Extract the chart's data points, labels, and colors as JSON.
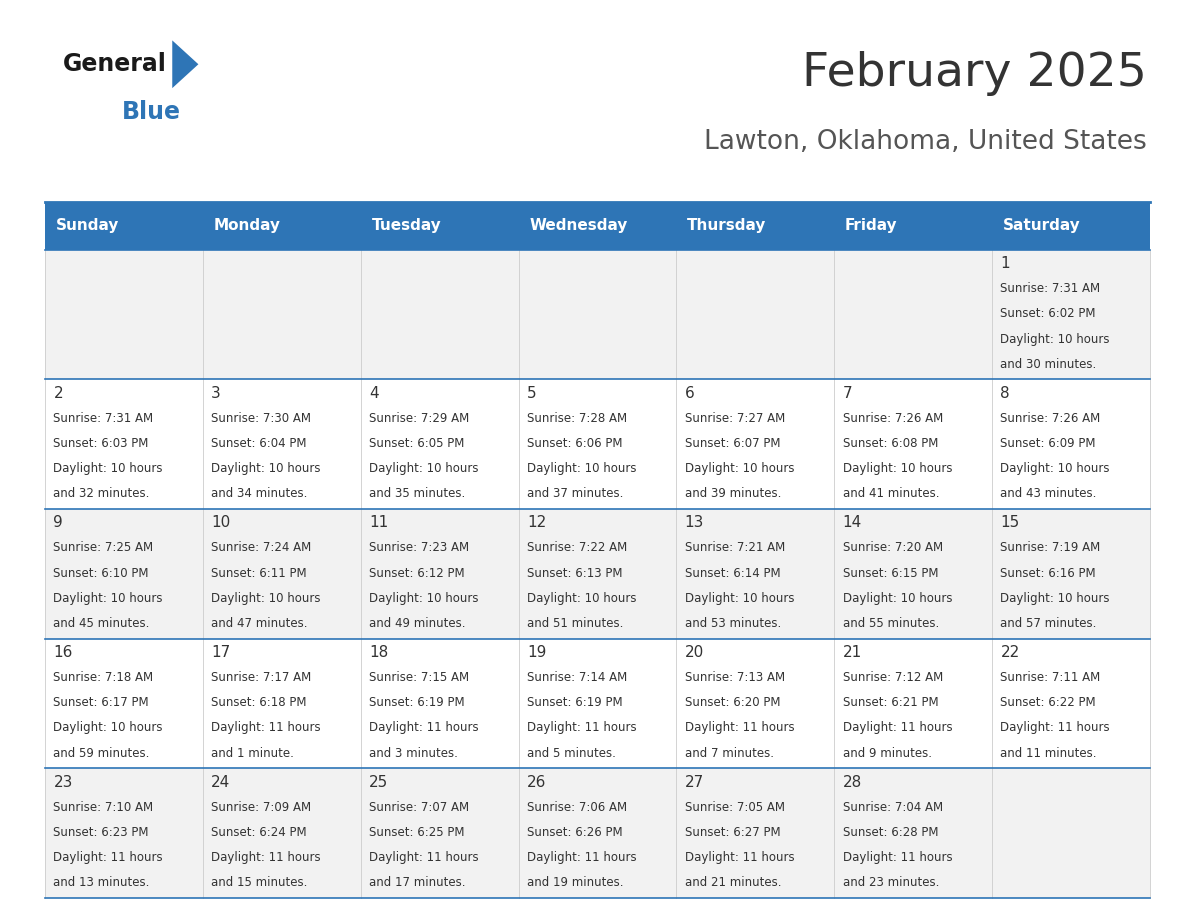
{
  "title": "February 2025",
  "subtitle": "Lawton, Oklahoma, United States",
  "days_of_week": [
    "Sunday",
    "Monday",
    "Tuesday",
    "Wednesday",
    "Thursday",
    "Friday",
    "Saturday"
  ],
  "header_bg": "#2E75B6",
  "header_text": "#FFFFFF",
  "cell_bg_odd": "#F2F2F2",
  "cell_bg_even": "#FFFFFF",
  "text_color": "#333333",
  "line_color": "#2E75B6",
  "title_color": "#333333",
  "subtitle_color": "#555555",
  "day_number_color": "#333333",
  "calendar_data": [
    {
      "day": 1,
      "week": 0,
      "dow": 6,
      "sunrise": "7:31 AM",
      "sunset": "6:02 PM",
      "daylight_h": "10 hours",
      "daylight_m": "and 30 minutes."
    },
    {
      "day": 2,
      "week": 1,
      "dow": 0,
      "sunrise": "7:31 AM",
      "sunset": "6:03 PM",
      "daylight_h": "10 hours",
      "daylight_m": "and 32 minutes."
    },
    {
      "day": 3,
      "week": 1,
      "dow": 1,
      "sunrise": "7:30 AM",
      "sunset": "6:04 PM",
      "daylight_h": "10 hours",
      "daylight_m": "and 34 minutes."
    },
    {
      "day": 4,
      "week": 1,
      "dow": 2,
      "sunrise": "7:29 AM",
      "sunset": "6:05 PM",
      "daylight_h": "10 hours",
      "daylight_m": "and 35 minutes."
    },
    {
      "day": 5,
      "week": 1,
      "dow": 3,
      "sunrise": "7:28 AM",
      "sunset": "6:06 PM",
      "daylight_h": "10 hours",
      "daylight_m": "and 37 minutes."
    },
    {
      "day": 6,
      "week": 1,
      "dow": 4,
      "sunrise": "7:27 AM",
      "sunset": "6:07 PM",
      "daylight_h": "10 hours",
      "daylight_m": "and 39 minutes."
    },
    {
      "day": 7,
      "week": 1,
      "dow": 5,
      "sunrise": "7:26 AM",
      "sunset": "6:08 PM",
      "daylight_h": "10 hours",
      "daylight_m": "and 41 minutes."
    },
    {
      "day": 8,
      "week": 1,
      "dow": 6,
      "sunrise": "7:26 AM",
      "sunset": "6:09 PM",
      "daylight_h": "10 hours",
      "daylight_m": "and 43 minutes."
    },
    {
      "day": 9,
      "week": 2,
      "dow": 0,
      "sunrise": "7:25 AM",
      "sunset": "6:10 PM",
      "daylight_h": "10 hours",
      "daylight_m": "and 45 minutes."
    },
    {
      "day": 10,
      "week": 2,
      "dow": 1,
      "sunrise": "7:24 AM",
      "sunset": "6:11 PM",
      "daylight_h": "10 hours",
      "daylight_m": "and 47 minutes."
    },
    {
      "day": 11,
      "week": 2,
      "dow": 2,
      "sunrise": "7:23 AM",
      "sunset": "6:12 PM",
      "daylight_h": "10 hours",
      "daylight_m": "and 49 minutes."
    },
    {
      "day": 12,
      "week": 2,
      "dow": 3,
      "sunrise": "7:22 AM",
      "sunset": "6:13 PM",
      "daylight_h": "10 hours",
      "daylight_m": "and 51 minutes."
    },
    {
      "day": 13,
      "week": 2,
      "dow": 4,
      "sunrise": "7:21 AM",
      "sunset": "6:14 PM",
      "daylight_h": "10 hours",
      "daylight_m": "and 53 minutes."
    },
    {
      "day": 14,
      "week": 2,
      "dow": 5,
      "sunrise": "7:20 AM",
      "sunset": "6:15 PM",
      "daylight_h": "10 hours",
      "daylight_m": "and 55 minutes."
    },
    {
      "day": 15,
      "week": 2,
      "dow": 6,
      "sunrise": "7:19 AM",
      "sunset": "6:16 PM",
      "daylight_h": "10 hours",
      "daylight_m": "and 57 minutes."
    },
    {
      "day": 16,
      "week": 3,
      "dow": 0,
      "sunrise": "7:18 AM",
      "sunset": "6:17 PM",
      "daylight_h": "10 hours",
      "daylight_m": "and 59 minutes."
    },
    {
      "day": 17,
      "week": 3,
      "dow": 1,
      "sunrise": "7:17 AM",
      "sunset": "6:18 PM",
      "daylight_h": "11 hours",
      "daylight_m": "and 1 minute."
    },
    {
      "day": 18,
      "week": 3,
      "dow": 2,
      "sunrise": "7:15 AM",
      "sunset": "6:19 PM",
      "daylight_h": "11 hours",
      "daylight_m": "and 3 minutes."
    },
    {
      "day": 19,
      "week": 3,
      "dow": 3,
      "sunrise": "7:14 AM",
      "sunset": "6:19 PM",
      "daylight_h": "11 hours",
      "daylight_m": "and 5 minutes."
    },
    {
      "day": 20,
      "week": 3,
      "dow": 4,
      "sunrise": "7:13 AM",
      "sunset": "6:20 PM",
      "daylight_h": "11 hours",
      "daylight_m": "and 7 minutes."
    },
    {
      "day": 21,
      "week": 3,
      "dow": 5,
      "sunrise": "7:12 AM",
      "sunset": "6:21 PM",
      "daylight_h": "11 hours",
      "daylight_m": "and 9 minutes."
    },
    {
      "day": 22,
      "week": 3,
      "dow": 6,
      "sunrise": "7:11 AM",
      "sunset": "6:22 PM",
      "daylight_h": "11 hours",
      "daylight_m": "and 11 minutes."
    },
    {
      "day": 23,
      "week": 4,
      "dow": 0,
      "sunrise": "7:10 AM",
      "sunset": "6:23 PM",
      "daylight_h": "11 hours",
      "daylight_m": "and 13 minutes."
    },
    {
      "day": 24,
      "week": 4,
      "dow": 1,
      "sunrise": "7:09 AM",
      "sunset": "6:24 PM",
      "daylight_h": "11 hours",
      "daylight_m": "and 15 minutes."
    },
    {
      "day": 25,
      "week": 4,
      "dow": 2,
      "sunrise": "7:07 AM",
      "sunset": "6:25 PM",
      "daylight_h": "11 hours",
      "daylight_m": "and 17 minutes."
    },
    {
      "day": 26,
      "week": 4,
      "dow": 3,
      "sunrise": "7:06 AM",
      "sunset": "6:26 PM",
      "daylight_h": "11 hours",
      "daylight_m": "and 19 minutes."
    },
    {
      "day": 27,
      "week": 4,
      "dow": 4,
      "sunrise": "7:05 AM",
      "sunset": "6:27 PM",
      "daylight_h": "11 hours",
      "daylight_m": "and 21 minutes."
    },
    {
      "day": 28,
      "week": 4,
      "dow": 5,
      "sunrise": "7:04 AM",
      "sunset": "6:28 PM",
      "daylight_h": "11 hours",
      "daylight_m": "and 23 minutes."
    }
  ]
}
